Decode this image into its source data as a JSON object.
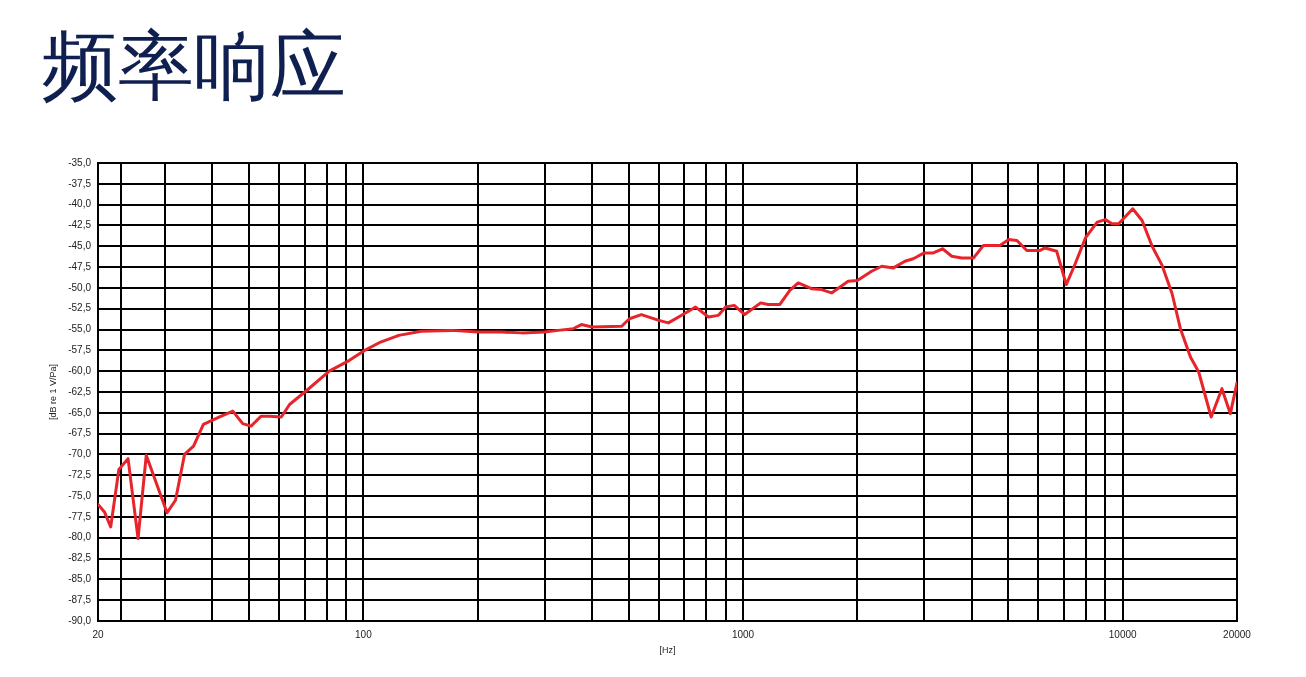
{
  "chart_data": {
    "type": "line",
    "title": "频率响应",
    "xlabel": "[Hz]",
    "ylabel": "[dB re 1 V/Pa]",
    "log": "x",
    "grid": true,
    "marker": "none",
    "line_style": "solid",
    "x": [
      20,
      20.8,
      21.6,
      22.7,
      24.0,
      25.5,
      26.8,
      30.4,
      32.0,
      33.8,
      35.7,
      37.9,
      41.8,
      45.3,
      48.1,
      50.6,
      53.8,
      56.6,
      60.8,
      63.9,
      71.4,
      81.3,
      91.9,
      100,
      111,
      124,
      142,
      171,
      200,
      231,
      261,
      300,
      326,
      357,
      375,
      400,
      479,
      502,
      540,
      600,
      636,
      700,
      750,
      811,
      860,
      900,
      948,
      1010,
      1113,
      1164,
      1249,
      1328,
      1397,
      1515,
      1610,
      1711,
      1892,
      2000,
      2181,
      2319,
      2489,
      2670,
      2808,
      3000,
      3172,
      3352,
      3546,
      3765,
      4048,
      4298,
      4753,
      5000,
      5264,
      5591,
      6060,
      6245,
      6701,
      7102,
      7497,
      7976,
      8566,
      8999,
      9373,
      9760,
      10626,
      11247,
      11954,
      12700,
      13493,
      14190,
      15080,
      15855,
      17100,
      18250,
      19210,
      20000
    ],
    "series": [
      {
        "color": "#e8242b",
        "values": [
          -76.0,
          -76.9,
          -78.7,
          -71.8,
          -70.5,
          -80.1,
          -70.1,
          -77.0,
          -75.5,
          -70.0,
          -69.0,
          -66.4,
          -65.5,
          -64.8,
          -66.3,
          -66.6,
          -65.4,
          -65.4,
          -65.5,
          -64.0,
          -62.2,
          -60.0,
          -58.7,
          -57.6,
          -56.5,
          -55.7,
          -55.2,
          -55.1,
          -55.3,
          -55.3,
          -55.4,
          -55.3,
          -55.1,
          -54.9,
          -54.4,
          -54.7,
          -54.6,
          -53.7,
          -53.2,
          -53.9,
          -54.2,
          -53.1,
          -52.3,
          -53.5,
          -53.3,
          -52.3,
          -52.1,
          -53.2,
          -51.8,
          -52.0,
          -52.0,
          -50.3,
          -49.4,
          -50.1,
          -50.2,
          -50.6,
          -49.2,
          -49.1,
          -48.0,
          -47.4,
          -47.6,
          -46.8,
          -46.5,
          -45.8,
          -45.8,
          -45.3,
          -46.2,
          -46.4,
          -46.4,
          -44.9,
          -44.9,
          -44.2,
          -44.3,
          -45.5,
          -45.5,
          -45.2,
          -45.6,
          -49.6,
          -47.1,
          -44.0,
          -42.1,
          -41.8,
          -42.3,
          -42.3,
          -40.5,
          -41.9,
          -45.0,
          -47.3,
          -50.7,
          -54.9,
          -58.3,
          -60.1,
          -65.5,
          -62.1,
          -65.1,
          -61.4
        ]
      }
    ],
    "xlim": [
      20,
      20000
    ],
    "xticks": [
      20,
      {
        "value": 23,
        "label": null
      },
      {
        "value": 30,
        "label": null
      },
      {
        "value": 40,
        "label": null
      },
      {
        "value": 50,
        "label": null
      },
      {
        "value": 60,
        "label": null
      },
      {
        "value": 70,
        "label": null
      },
      {
        "value": 80,
        "label": null
      },
      {
        "value": 90,
        "label": null
      },
      100,
      {
        "value": 200,
        "label": null
      },
      {
        "value": 300,
        "label": null
      },
      {
        "value": 400,
        "label": null
      },
      {
        "value": 500,
        "label": null
      },
      {
        "value": 600,
        "label": null
      },
      {
        "value": 700,
        "label": null
      },
      {
        "value": 800,
        "label": null
      },
      {
        "value": 900,
        "label": null
      },
      1000,
      {
        "value": 2000,
        "label": null
      },
      {
        "value": 3000,
        "label": null
      },
      {
        "value": 4000,
        "label": null
      },
      {
        "value": 5000,
        "label": null
      },
      {
        "value": 6000,
        "label": null
      },
      {
        "value": 7000,
        "label": null
      },
      {
        "value": 8000,
        "label": null
      },
      {
        "value": 9000,
        "label": null
      },
      10000,
      20000
    ],
    "ylim": [
      -90,
      -35
    ],
    "yticks": [
      {
        "value": -90,
        "label": "-90,0"
      },
      {
        "value": -87.5,
        "label": "-87,5"
      },
      {
        "value": -85,
        "label": "-85,0"
      },
      {
        "value": -82.5,
        "label": "-82,5"
      },
      {
        "value": -80,
        "label": "-80,0"
      },
      {
        "value": -77.5,
        "label": "-77,5"
      },
      {
        "value": -75,
        "label": "-75,0"
      },
      {
        "value": -72.5,
        "label": "-72,5"
      },
      {
        "value": -70,
        "label": "-70,0"
      },
      {
        "value": -67.5,
        "label": "-67,5"
      },
      {
        "value": -65,
        "label": "-65,0"
      },
      {
        "value": -62.5,
        "label": "-62,5"
      },
      {
        "value": -60,
        "label": "-60,0"
      },
      {
        "value": -57.5,
        "label": "-57,5"
      },
      {
        "value": -55,
        "label": "-55,0"
      },
      {
        "value": -52.5,
        "label": "-52,5"
      },
      {
        "value": -50,
        "label": "-50,0"
      },
      {
        "value": -47.5,
        "label": "-47,5"
      },
      {
        "value": -45,
        "label": "-45,0"
      },
      {
        "value": -42.5,
        "label": "-42,5"
      },
      {
        "value": -40,
        "label": "-40,0"
      },
      {
        "value": -37.5,
        "label": "-37,5"
      },
      {
        "value": -35,
        "label": "-35,0"
      }
    ]
  }
}
